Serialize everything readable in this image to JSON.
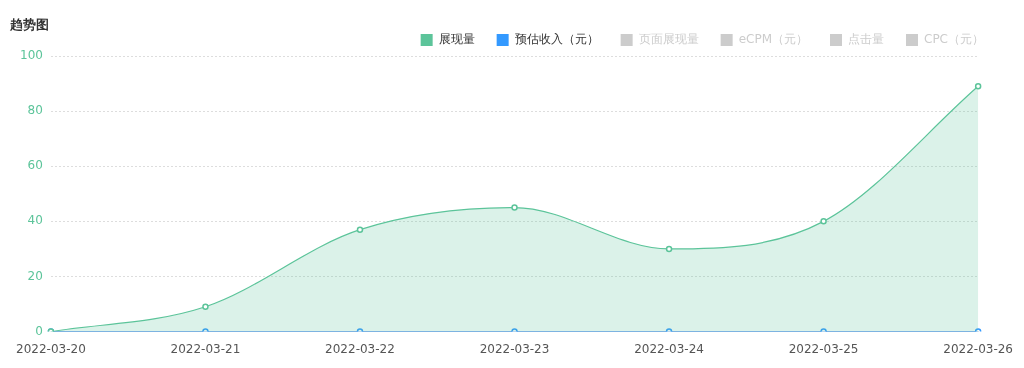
{
  "chart_data": {
    "type": "area",
    "title": "趋势图",
    "categories": [
      "2022-03-20",
      "2022-03-21",
      "2022-03-22",
      "2022-03-23",
      "2022-03-24",
      "2022-03-25",
      "2022-03-26"
    ],
    "series": [
      {
        "name": "展现量",
        "color": "#5cc49a",
        "values": [
          0,
          9,
          37,
          45,
          30,
          40,
          89
        ]
      },
      {
        "name": "预估收入（元）",
        "color": "#3399ff",
        "type": "line",
        "values": [
          0,
          0,
          0,
          0,
          0,
          0,
          0
        ]
      },
      {
        "name": "页面展现量",
        "color": "#cccccc",
        "type": "line",
        "values": [
          null,
          null,
          null,
          null,
          null,
          null,
          null
        ]
      },
      {
        "name": "eCPM（元）",
        "color": "#cccccc",
        "type": "line",
        "values": [
          null,
          null,
          null,
          null,
          null,
          null,
          null
        ]
      },
      {
        "name": "点击量",
        "color": "#cccccc",
        "type": "line",
        "values": [
          null,
          null,
          null,
          null,
          null,
          null,
          null
        ]
      },
      {
        "name": "CPC（元）",
        "color": "#cccccc",
        "type": "line",
        "values": [
          null,
          null,
          null,
          null,
          null,
          null,
          null
        ]
      }
    ],
    "ylim": [
      0,
      100
    ],
    "yticks": [
      0,
      20,
      40,
      60,
      80,
      100
    ],
    "grid": "y",
    "legend": "top right",
    "marker": "circle"
  }
}
